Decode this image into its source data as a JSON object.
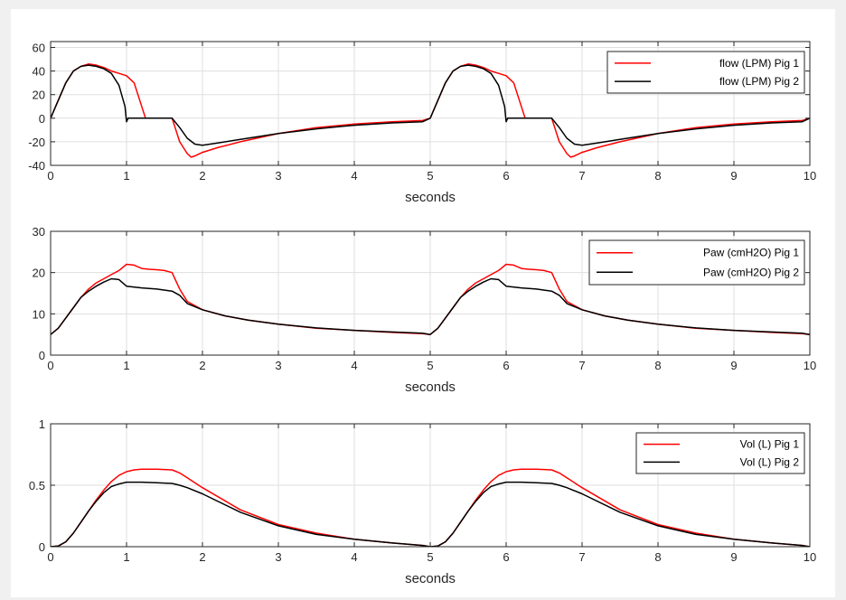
{
  "chart_data": [
    {
      "type": "line",
      "title": "",
      "xlabel": "seconds",
      "ylabel": "",
      "xlim": [
        0,
        10
      ],
      "ylim": [
        -40,
        65
      ],
      "xticks": [
        0,
        1,
        2,
        3,
        4,
        5,
        6,
        7,
        8,
        9,
        10
      ],
      "yticks": [
        -40,
        -20,
        0,
        20,
        40,
        60
      ],
      "grid": true,
      "legend_position": "top-right",
      "series": [
        {
          "name": "flow (LPM) Pig 1",
          "color": "#ff0000",
          "x": [
            0,
            0.1,
            0.2,
            0.3,
            0.4,
            0.5,
            0.6,
            0.7,
            0.8,
            0.9,
            1.0,
            1.1,
            1.2,
            1.25,
            1.3,
            1.6,
            1.7,
            1.8,
            1.85,
            1.9,
            2.0,
            2.2,
            2.5,
            3.0,
            3.5,
            4.0,
            4.5,
            4.9,
            5.0,
            5.1,
            5.2,
            5.3,
            5.4,
            5.5,
            5.6,
            5.7,
            5.8,
            5.9,
            6.0,
            6.1,
            6.2,
            6.25,
            6.3,
            6.6,
            6.7,
            6.8,
            6.85,
            6.9,
            7.0,
            7.2,
            7.5,
            8.0,
            8.5,
            9.0,
            9.5,
            9.9,
            10.0
          ],
          "y": [
            0,
            15,
            30,
            40,
            44,
            46,
            45,
            43,
            40,
            38,
            36,
            30,
            10,
            0,
            0,
            0,
            -20,
            -30,
            -33,
            -32,
            -29,
            -25,
            -20,
            -13,
            -8,
            -5,
            -3,
            -2,
            0,
            15,
            30,
            40,
            44,
            46,
            45,
            43,
            40,
            38,
            36,
            30,
            10,
            0,
            0,
            0,
            -20,
            -30,
            -33,
            -32,
            -29,
            -25,
            -20,
            -13,
            -8,
            -5,
            -3,
            -2,
            0
          ]
        },
        {
          "name": "flow (LPM) Pig 2",
          "color": "#000000",
          "x": [
            0,
            0.1,
            0.2,
            0.3,
            0.4,
            0.5,
            0.6,
            0.7,
            0.8,
            0.9,
            0.98,
            1.0,
            1.02,
            1.1,
            1.3,
            1.6,
            1.7,
            1.8,
            1.9,
            2.0,
            2.2,
            2.5,
            3.0,
            3.5,
            4.0,
            4.5,
            4.9,
            5.0,
            5.1,
            5.2,
            5.3,
            5.4,
            5.5,
            5.6,
            5.7,
            5.8,
            5.9,
            5.98,
            6.0,
            6.02,
            6.1,
            6.3,
            6.6,
            6.7,
            6.8,
            6.9,
            7.0,
            7.2,
            7.5,
            8.0,
            8.5,
            9.0,
            9.5,
            9.9,
            10.0
          ],
          "y": [
            0,
            15,
            30,
            40,
            44,
            45,
            44,
            42,
            38,
            28,
            10,
            -3,
            0,
            0,
            0,
            0,
            -8,
            -17,
            -22,
            -23,
            -21,
            -18,
            -13,
            -9,
            -6,
            -4,
            -3,
            0,
            15,
            30,
            40,
            44,
            45,
            44,
            42,
            38,
            28,
            10,
            -3,
            0,
            0,
            0,
            0,
            -8,
            -17,
            -22,
            -23,
            -21,
            -18,
            -13,
            -9,
            -6,
            -4,
            -3,
            0
          ]
        }
      ]
    },
    {
      "type": "line",
      "title": "",
      "xlabel": "seconds",
      "ylabel": "",
      "xlim": [
        0,
        10
      ],
      "ylim": [
        0,
        30
      ],
      "xticks": [
        0,
        1,
        2,
        3,
        4,
        5,
        6,
        7,
        8,
        9,
        10
      ],
      "yticks": [
        0,
        10,
        20,
        30
      ],
      "grid": true,
      "legend_position": "top-right",
      "series": [
        {
          "name": "Paw (cmH2O) Pig 1",
          "color": "#ff0000",
          "x": [
            0,
            0.1,
            0.2,
            0.3,
            0.4,
            0.5,
            0.6,
            0.7,
            0.8,
            0.9,
            1.0,
            1.1,
            1.2,
            1.3,
            1.4,
            1.5,
            1.6,
            1.7,
            1.8,
            2.0,
            2.3,
            2.6,
            3.0,
            3.5,
            4.0,
            4.5,
            4.9,
            5.0,
            5.1,
            5.2,
            5.3,
            5.4,
            5.5,
            5.6,
            5.7,
            5.8,
            5.9,
            6.0,
            6.1,
            6.2,
            6.3,
            6.4,
            6.5,
            6.6,
            6.7,
            6.8,
            7.0,
            7.3,
            7.6,
            8.0,
            8.5,
            9.0,
            9.5,
            9.9,
            10.0
          ],
          "y": [
            5,
            6.5,
            9,
            11.5,
            14,
            16,
            17.5,
            18.5,
            19.5,
            20.5,
            22,
            21.8,
            21,
            20.8,
            20.7,
            20.5,
            20,
            16,
            13,
            11,
            9.5,
            8.5,
            7.5,
            6.5,
            6,
            5.5,
            5.2,
            5,
            6.5,
            9,
            11.5,
            14,
            16,
            17.5,
            18.5,
            19.5,
            20.5,
            22,
            21.8,
            21,
            20.8,
            20.7,
            20.5,
            20,
            16,
            13,
            11,
            9.5,
            8.5,
            7.5,
            6.5,
            6,
            5.5,
            5.2,
            5
          ]
        },
        {
          "name": "Paw (cmH2O) Pig 2",
          "color": "#000000",
          "x": [
            0,
            0.1,
            0.2,
            0.3,
            0.4,
            0.5,
            0.6,
            0.7,
            0.8,
            0.9,
            0.95,
            1.0,
            1.2,
            1.4,
            1.6,
            1.7,
            1.8,
            2.0,
            2.3,
            2.6,
            3.0,
            3.5,
            4.0,
            4.5,
            4.9,
            5.0,
            5.1,
            5.2,
            5.3,
            5.4,
            5.5,
            5.6,
            5.7,
            5.8,
            5.9,
            5.95,
            6.0,
            6.2,
            6.4,
            6.6,
            6.7,
            6.8,
            7.0,
            7.3,
            7.6,
            8.0,
            8.5,
            9.0,
            9.5,
            9.9,
            10.0
          ],
          "y": [
            5,
            6.5,
            9,
            11.5,
            14,
            15.5,
            16.7,
            17.7,
            18.5,
            18.3,
            17.5,
            16.7,
            16.3,
            16,
            15.5,
            14.5,
            12.5,
            11,
            9.5,
            8.5,
            7.5,
            6.6,
            6,
            5.6,
            5.3,
            5,
            6.5,
            9,
            11.5,
            14,
            15.5,
            16.7,
            17.7,
            18.5,
            18.3,
            17.5,
            16.7,
            16.3,
            16,
            15.5,
            14.5,
            12.5,
            11,
            9.5,
            8.5,
            7.5,
            6.6,
            6,
            5.6,
            5.3,
            5
          ]
        }
      ]
    },
    {
      "type": "line",
      "title": "",
      "xlabel": "seconds",
      "ylabel": "",
      "xlim": [
        0,
        10
      ],
      "ylim": [
        0,
        1
      ],
      "xticks": [
        0,
        1,
        2,
        3,
        4,
        5,
        6,
        7,
        8,
        9,
        10
      ],
      "yticks": [
        0,
        0.5,
        1
      ],
      "grid": true,
      "legend_position": "top-right",
      "series": [
        {
          "name": "Vol (L) Pig 1",
          "color": "#ff0000",
          "x": [
            0,
            0.1,
            0.2,
            0.3,
            0.4,
            0.5,
            0.6,
            0.7,
            0.8,
            0.9,
            1.0,
            1.1,
            1.2,
            1.4,
            1.6,
            1.7,
            1.8,
            2.0,
            2.5,
            3.0,
            3.5,
            4.0,
            4.5,
            4.9,
            5.0,
            5.1,
            5.2,
            5.3,
            5.4,
            5.5,
            5.6,
            5.7,
            5.8,
            5.9,
            6.0,
            6.1,
            6.2,
            6.4,
            6.6,
            6.7,
            6.8,
            7.0,
            7.5,
            8.0,
            8.5,
            9.0,
            9.5,
            9.9,
            10.0
          ],
          "y": [
            0,
            0.005,
            0.04,
            0.11,
            0.2,
            0.29,
            0.38,
            0.46,
            0.53,
            0.58,
            0.61,
            0.625,
            0.63,
            0.63,
            0.625,
            0.6,
            0.56,
            0.48,
            0.3,
            0.18,
            0.11,
            0.06,
            0.03,
            0.01,
            0,
            0.005,
            0.04,
            0.11,
            0.2,
            0.29,
            0.38,
            0.46,
            0.53,
            0.58,
            0.61,
            0.625,
            0.63,
            0.63,
            0.625,
            0.6,
            0.56,
            0.48,
            0.3,
            0.18,
            0.11,
            0.06,
            0.03,
            0.01,
            0
          ]
        },
        {
          "name": "Vol (L) Pig 2",
          "color": "#000000",
          "x": [
            0,
            0.1,
            0.2,
            0.3,
            0.4,
            0.5,
            0.6,
            0.7,
            0.8,
            0.9,
            1.0,
            1.2,
            1.4,
            1.6,
            1.7,
            1.8,
            2.0,
            2.5,
            3.0,
            3.5,
            4.0,
            4.5,
            4.9,
            5.0,
            5.1,
            5.2,
            5.3,
            5.4,
            5.5,
            5.6,
            5.7,
            5.8,
            5.9,
            6.0,
            6.2,
            6.4,
            6.6,
            6.7,
            6.8,
            7.0,
            7.5,
            8.0,
            8.5,
            9.0,
            9.5,
            9.9,
            10.0
          ],
          "y": [
            0,
            0.005,
            0.04,
            0.11,
            0.2,
            0.29,
            0.37,
            0.44,
            0.49,
            0.51,
            0.525,
            0.525,
            0.52,
            0.515,
            0.5,
            0.48,
            0.43,
            0.28,
            0.17,
            0.1,
            0.06,
            0.03,
            0.01,
            0,
            0.005,
            0.04,
            0.11,
            0.2,
            0.29,
            0.37,
            0.44,
            0.49,
            0.51,
            0.525,
            0.525,
            0.52,
            0.515,
            0.5,
            0.48,
            0.43,
            0.28,
            0.17,
            0.1,
            0.06,
            0.03,
            0.01,
            0
          ]
        }
      ]
    }
  ]
}
